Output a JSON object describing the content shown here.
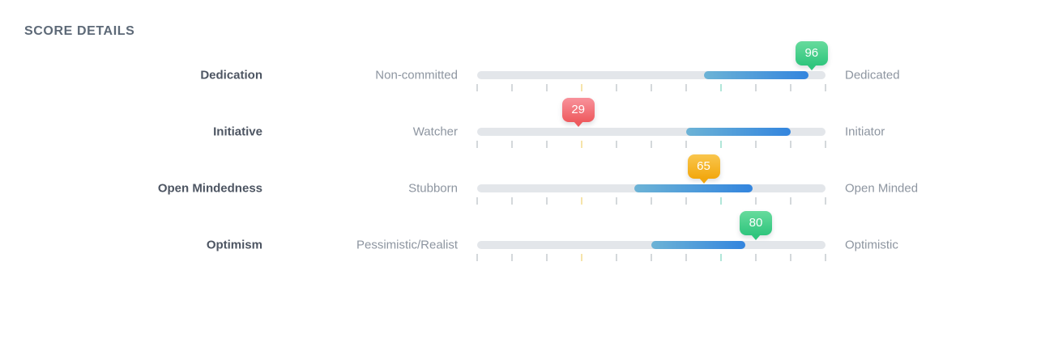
{
  "title": "SCORE DETAILS",
  "scale": {
    "min": 0,
    "max": 100,
    "tick_step": 10,
    "threshold_low": 30,
    "threshold_high": 70
  },
  "colors": {
    "track": "#e3e6ea",
    "fill_gradient": [
      "#6cb3d6",
      "#3385de"
    ],
    "tick_default": "#aab0b7",
    "tick_low_threshold": "#eec856",
    "tick_high_threshold": "#63ccb3",
    "badge": {
      "green": [
        "#67db9d",
        "#2fc57d"
      ],
      "red": [
        "#f8929b",
        "#ee5a5e"
      ],
      "amber": [
        "#f9c64d",
        "#f2a70e"
      ]
    },
    "title_text": "#5d6977",
    "trait_text": "#4d5562",
    "secondary_text": "#8d95a0"
  },
  "rows": [
    {
      "trait": "Dedication",
      "low_label": "Non-committed",
      "high_label": "Dedicated",
      "score": 96,
      "score_color": "green",
      "range_start": 65,
      "range_end": 95
    },
    {
      "trait": "Initiative",
      "low_label": "Watcher",
      "high_label": "Initiator",
      "score": 29,
      "score_color": "red",
      "range_start": 60,
      "range_end": 90
    },
    {
      "trait": "Open Mindedness",
      "low_label": "Stubborn",
      "high_label": "Open Minded",
      "score": 65,
      "score_color": "amber",
      "range_start": 45,
      "range_end": 79
    },
    {
      "trait": "Optimism",
      "low_label": "Pessimistic/Realist",
      "high_label": "Optimistic",
      "score": 80,
      "score_color": "green",
      "range_start": 50,
      "range_end": 77
    }
  ],
  "chart_data": {
    "type": "bar",
    "title": "SCORE DETAILS",
    "categories": [
      "Dedication",
      "Initiative",
      "Open Mindedness",
      "Optimism"
    ],
    "series": [
      {
        "name": "score",
        "values": [
          96,
          29,
          65,
          80
        ]
      },
      {
        "name": "range_start",
        "values": [
          65,
          60,
          45,
          50
        ]
      },
      {
        "name": "range_end",
        "values": [
          95,
          90,
          79,
          77
        ]
      }
    ],
    "low_end_labels": [
      "Non-committed",
      "Watcher",
      "Stubborn",
      "Pessimistic/Realist"
    ],
    "high_end_labels": [
      "Dedicated",
      "Initiator",
      "Open Minded",
      "Optimistic"
    ],
    "score_badge_colors": [
      "green",
      "red",
      "amber",
      "green"
    ],
    "xlim": [
      0,
      100
    ],
    "tick_step": 10,
    "threshold_ticks": [
      30,
      70
    ],
    "legend": false,
    "grid": false
  }
}
